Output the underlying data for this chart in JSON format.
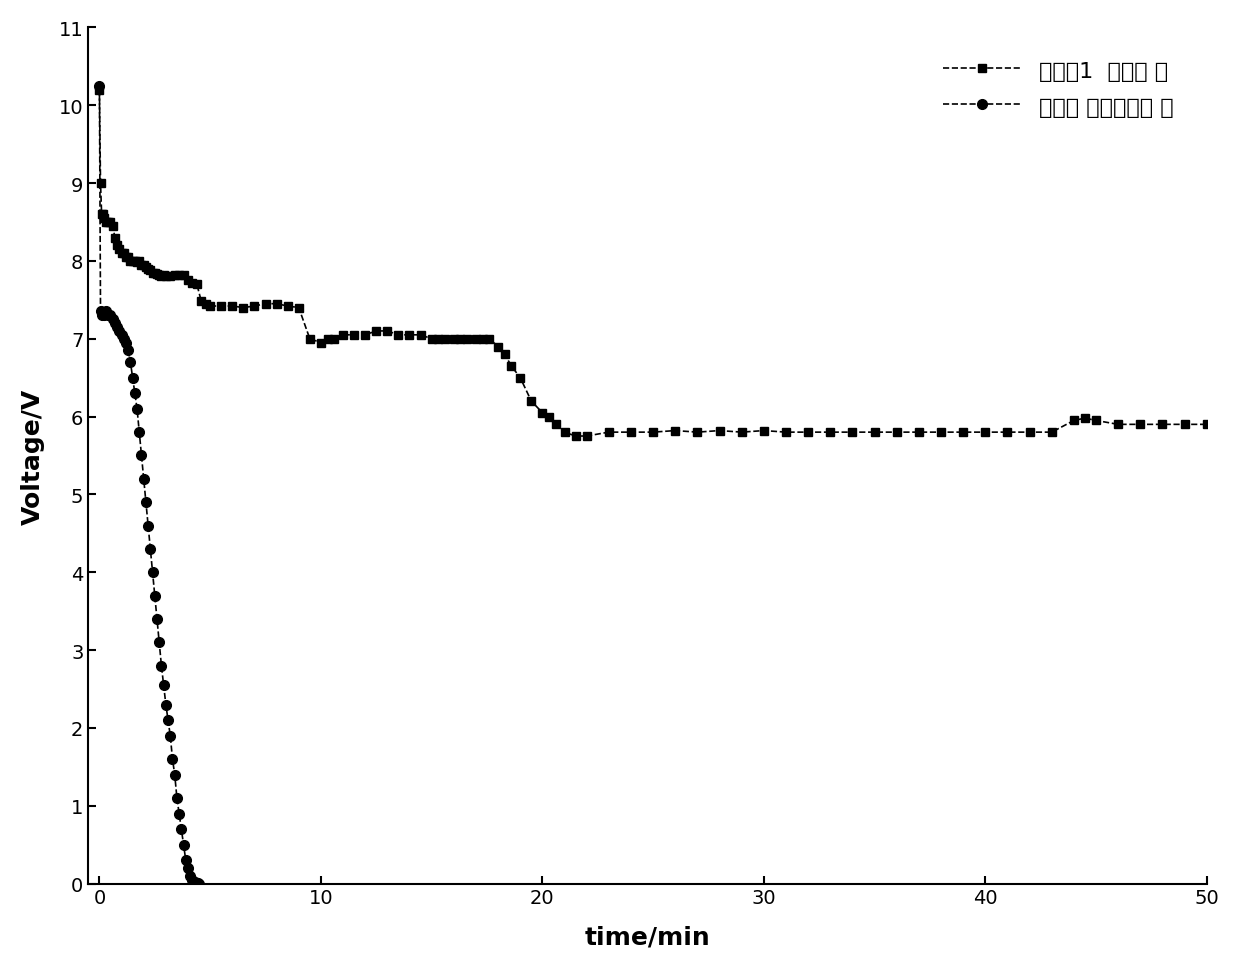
{
  "xlabel": "time/min",
  "ylabel": "Voltage/V",
  "xlim": [
    -0.5,
    50
  ],
  "ylim": [
    0,
    11
  ],
  "xticks": [
    0,
    10,
    20,
    30,
    40,
    50
  ],
  "yticks": [
    0,
    1,
    2,
    3,
    4,
    5,
    6,
    7,
    8,
    9,
    10,
    11
  ],
  "legend1": "实施例1  启动方 法",
  "legend2": "恒电流 密度启动方 法",
  "color": "#000000",
  "series1_x": [
    0.0,
    0.05,
    0.1,
    0.15,
    0.2,
    0.3,
    0.4,
    0.5,
    0.6,
    0.7,
    0.8,
    0.9,
    1.0,
    1.1,
    1.2,
    1.3,
    1.4,
    1.5,
    1.6,
    1.7,
    1.8,
    1.9,
    2.0,
    2.1,
    2.2,
    2.3,
    2.4,
    2.5,
    2.6,
    2.7,
    2.8,
    2.9,
    3.0,
    3.2,
    3.4,
    3.6,
    3.8,
    4.0,
    4.2,
    4.4,
    4.6,
    4.8,
    5.0,
    5.5,
    6.0,
    6.5,
    7.0,
    7.5,
    8.0,
    8.5,
    9.0,
    9.5,
    10.0,
    10.3,
    10.6,
    11.0,
    11.5,
    12.0,
    12.5,
    13.0,
    13.5,
    14.0,
    14.5,
    15.0,
    15.3,
    15.6,
    16.0,
    16.3,
    16.6,
    17.0,
    17.3,
    17.6,
    18.0,
    18.3,
    18.6,
    19.0,
    19.5,
    20.0,
    20.3,
    20.6,
    21.0,
    21.5,
    22.0,
    23.0,
    24.0,
    25.0,
    26.0,
    27.0,
    28.0,
    29.0,
    30.0,
    31.0,
    32.0,
    33.0,
    34.0,
    35.0,
    36.0,
    37.0,
    38.0,
    39.0,
    40.0,
    41.0,
    42.0,
    43.0,
    44.0,
    44.5,
    45.0,
    46.0,
    47.0,
    48.0,
    49.0,
    50.0
  ],
  "series1_y": [
    10.2,
    9.0,
    8.6,
    8.6,
    8.55,
    8.5,
    8.5,
    8.5,
    8.45,
    8.3,
    8.2,
    8.15,
    8.1,
    8.1,
    8.05,
    8.05,
    8.0,
    8.0,
    8.0,
    7.98,
    8.0,
    7.95,
    7.95,
    7.92,
    7.9,
    7.88,
    7.85,
    7.85,
    7.83,
    7.82,
    7.8,
    7.82,
    7.8,
    7.8,
    7.82,
    7.82,
    7.82,
    7.75,
    7.72,
    7.7,
    7.48,
    7.45,
    7.42,
    7.42,
    7.42,
    7.4,
    7.42,
    7.45,
    7.45,
    7.42,
    7.4,
    7.0,
    6.95,
    7.0,
    7.0,
    7.05,
    7.05,
    7.05,
    7.1,
    7.1,
    7.05,
    7.05,
    7.05,
    7.0,
    7.0,
    7.0,
    7.0,
    7.0,
    7.0,
    7.0,
    7.0,
    7.0,
    6.9,
    6.8,
    6.65,
    6.5,
    6.2,
    6.05,
    6.0,
    5.9,
    5.8,
    5.75,
    5.75,
    5.8,
    5.8,
    5.8,
    5.82,
    5.8,
    5.82,
    5.8,
    5.82,
    5.8,
    5.8,
    5.8,
    5.8,
    5.8,
    5.8,
    5.8,
    5.8,
    5.8,
    5.8,
    5.8,
    5.8,
    5.8,
    5.95,
    5.98,
    5.95,
    5.9,
    5.9,
    5.9,
    5.9,
    5.9
  ],
  "series2_x": [
    0.0,
    0.05,
    0.1,
    0.2,
    0.3,
    0.4,
    0.5,
    0.6,
    0.7,
    0.8,
    0.9,
    1.0,
    1.1,
    1.2,
    1.3,
    1.4,
    1.5,
    1.6,
    1.7,
    1.8,
    1.9,
    2.0,
    2.1,
    2.2,
    2.3,
    2.4,
    2.5,
    2.6,
    2.7,
    2.8,
    2.9,
    3.0,
    3.1,
    3.2,
    3.3,
    3.4,
    3.5,
    3.6,
    3.7,
    3.8,
    3.9,
    4.0,
    4.1,
    4.2,
    4.3,
    4.4,
    4.45,
    4.5
  ],
  "series2_y": [
    10.25,
    7.35,
    7.3,
    7.3,
    7.35,
    7.3,
    7.3,
    7.25,
    7.2,
    7.15,
    7.1,
    7.05,
    7.0,
    6.95,
    6.85,
    6.7,
    6.5,
    6.3,
    6.1,
    5.8,
    5.5,
    5.2,
    4.9,
    4.6,
    4.3,
    4.0,
    3.7,
    3.4,
    3.1,
    2.8,
    2.55,
    2.3,
    2.1,
    1.9,
    1.6,
    1.4,
    1.1,
    0.9,
    0.7,
    0.5,
    0.3,
    0.2,
    0.1,
    0.05,
    0.02,
    0.01,
    0.005,
    0.0
  ]
}
